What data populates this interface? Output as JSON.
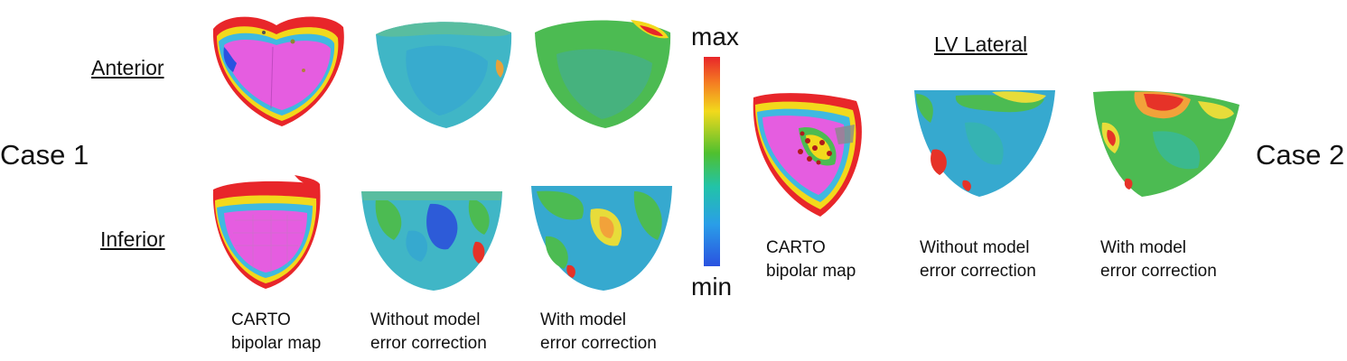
{
  "case1": "Case 1",
  "case2": "Case 2",
  "anterior": "Anterior",
  "inferior": "Inferior",
  "lv_lateral": "LV Lateral",
  "scale_max": "max",
  "scale_min": "min",
  "captions": {
    "carto": [
      "CARTO",
      "bipolar map"
    ],
    "without": [
      "Without model",
      "error correction"
    ],
    "with": [
      "With model",
      "error correction"
    ]
  },
  "colors": {
    "scar": "#e55de0",
    "red": "#e63228",
    "orange": "#f2a23a",
    "yellow": "#e7dc3a",
    "green": "#4cbb52",
    "teal": "#34b8a6",
    "cyan": "#36a9cf",
    "blue": "#2d5bd8"
  }
}
